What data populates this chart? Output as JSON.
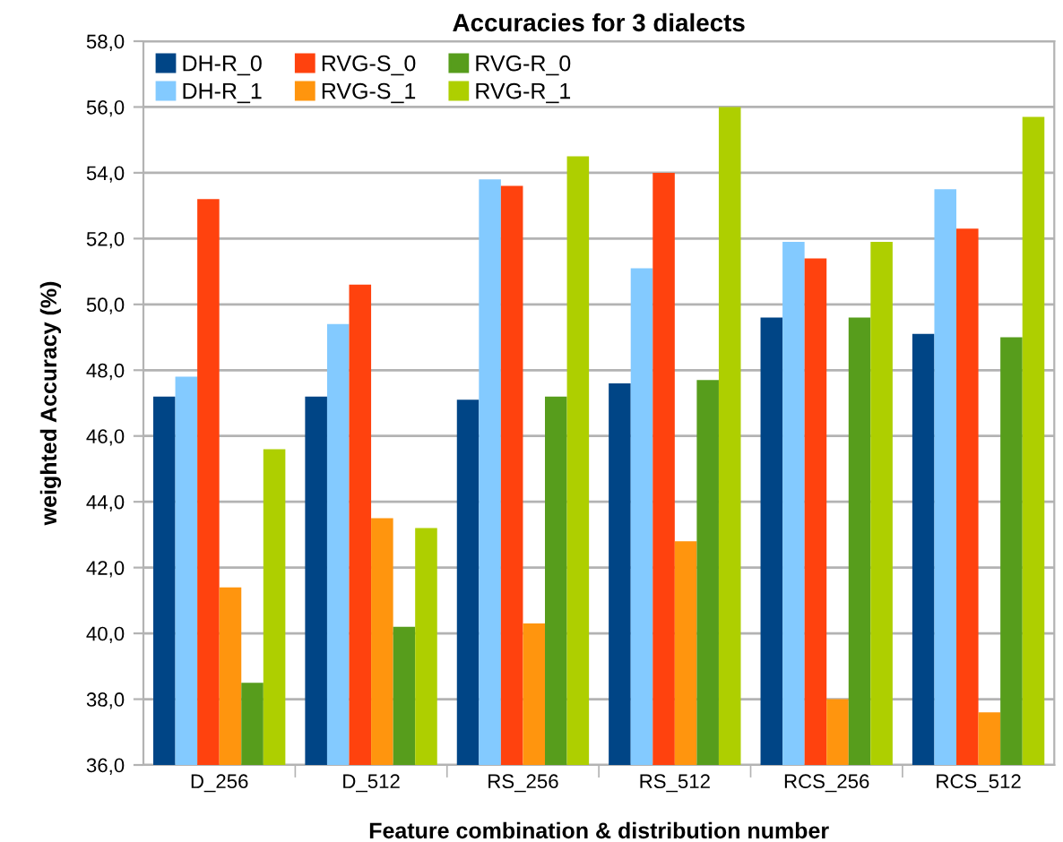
{
  "chart_data": {
    "type": "bar",
    "title": "Accuracies for 3 dialects",
    "xlabel": "Feature combination & distribution number",
    "ylabel": "weighted Accuracy (%)",
    "categories": [
      "D_256",
      "D_512",
      "RS_256",
      "RS_512",
      "RCS_256",
      "RCS_512"
    ],
    "series": [
      {
        "name": "DH-R_0",
        "color": "#004586",
        "values": [
          47.2,
          47.2,
          47.1,
          47.6,
          49.6,
          49.1
        ]
      },
      {
        "name": "DH-R_1",
        "color": "#83caff",
        "values": [
          47.8,
          49.4,
          53.8,
          51.1,
          51.9,
          53.5
        ]
      },
      {
        "name": "RVG-S_0",
        "color": "#ff420e",
        "values": [
          53.2,
          50.6,
          53.6,
          54.0,
          51.4,
          52.3
        ]
      },
      {
        "name": "RVG-S_1",
        "color": "#ff950e",
        "values": [
          41.4,
          43.5,
          40.3,
          42.8,
          38.0,
          37.6
        ]
      },
      {
        "name": "RVG-R_0",
        "color": "#579d1c",
        "values": [
          38.5,
          40.2,
          47.2,
          47.7,
          49.6,
          49.0
        ]
      },
      {
        "name": "RVG-R_1",
        "color": "#aecf00",
        "values": [
          45.6,
          43.2,
          54.5,
          56.0,
          51.9,
          55.7
        ]
      }
    ],
    "ylim": [
      36,
      58
    ],
    "yticks": [
      {
        "value": 36,
        "label": "36,0"
      },
      {
        "value": 38,
        "label": "38,0"
      },
      {
        "value": 40,
        "label": "40,0"
      },
      {
        "value": 42,
        "label": "42,0"
      },
      {
        "value": 44,
        "label": "44,0"
      },
      {
        "value": 46,
        "label": "46,0"
      },
      {
        "value": 48,
        "label": "48,0"
      },
      {
        "value": 50,
        "label": "50,0"
      },
      {
        "value": 52,
        "label": "52,0"
      },
      {
        "value": 54,
        "label": "54,0"
      },
      {
        "value": 56,
        "label": "56,0"
      },
      {
        "value": 58,
        "label": "58,0"
      }
    ],
    "grid": "y",
    "legend": "top left"
  }
}
